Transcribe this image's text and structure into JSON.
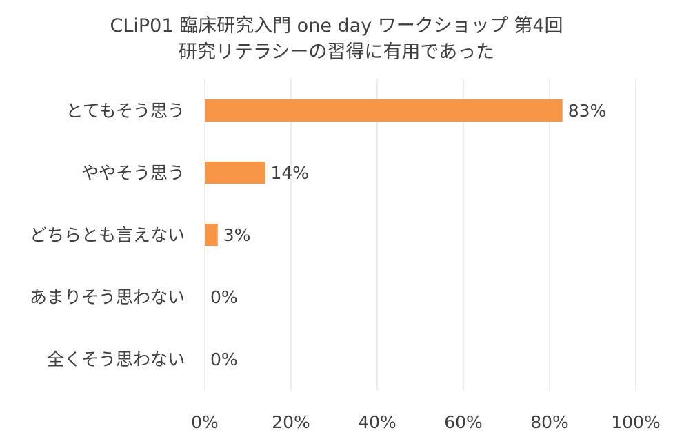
{
  "colors": {
    "bar": "#F79646",
    "grid": "#D9D9D9",
    "text": "#404040"
  },
  "chart_data": {
    "type": "bar",
    "orientation": "horizontal",
    "title_lines": [
      "CLiP01 臨床研究入門 one day ワークショップ 第4回",
      "研究リテラシーの習得に有用であった"
    ],
    "categories": [
      "とてもそう思う",
      "ややそう思う",
      "どちらとも言えない",
      "あまりそう思わない",
      "全くそう思わない"
    ],
    "values": [
      83,
      14,
      3,
      0,
      0
    ],
    "value_labels": [
      "83%",
      "14%",
      "3%",
      "0%",
      "0%"
    ],
    "xlim": [
      0,
      100
    ],
    "x_ticks": [
      0,
      20,
      40,
      60,
      80,
      100
    ],
    "x_tick_labels": [
      "0%",
      "20%",
      "40%",
      "60%",
      "80%",
      "100%"
    ],
    "grid": true,
    "legend": "none"
  }
}
